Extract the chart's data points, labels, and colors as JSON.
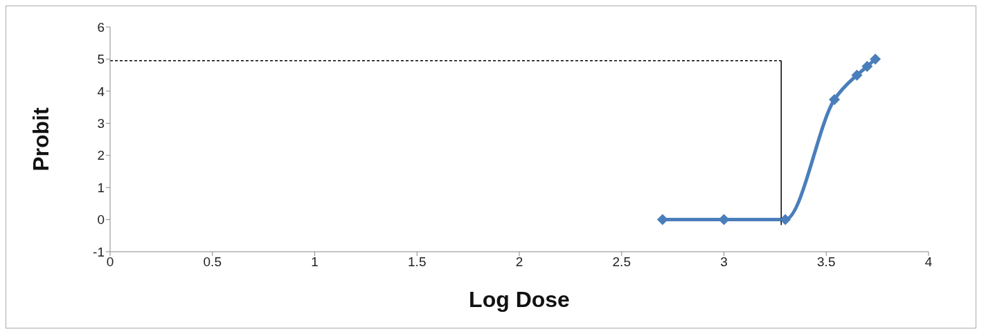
{
  "chart_data": {
    "type": "line",
    "xlabel": "Log Dose",
    "ylabel": "Probit",
    "xlim": [
      0,
      4
    ],
    "xticks": [
      0,
      0.5,
      1,
      1.5,
      2,
      2.5,
      3,
      3.5,
      4
    ],
    "ylim": [
      -1,
      6
    ],
    "yticks": [
      -1,
      0,
      1,
      2,
      3,
      4,
      5,
      6
    ],
    "legend": false,
    "series": [
      {
        "color": "#4a7ebb",
        "marker": "diamond",
        "line_style": "solid",
        "x": [
          2.7,
          3.0,
          3.3,
          3.54,
          3.65,
          3.7,
          3.74
        ],
        "values": [
          0,
          0,
          0,
          3.74,
          4.5,
          4.77,
          5.0
        ]
      },
      {
        "color": "#000000",
        "marker": "none",
        "line_style": "dashed",
        "x": [
          0,
          3.28
        ],
        "values": [
          4.95,
          4.95
        ]
      },
      {
        "color": "#000000",
        "marker": "none",
        "line_style": "solid",
        "x": [
          3.28,
          3.28
        ],
        "values": [
          4.95,
          -0.17
        ]
      }
    ]
  }
}
